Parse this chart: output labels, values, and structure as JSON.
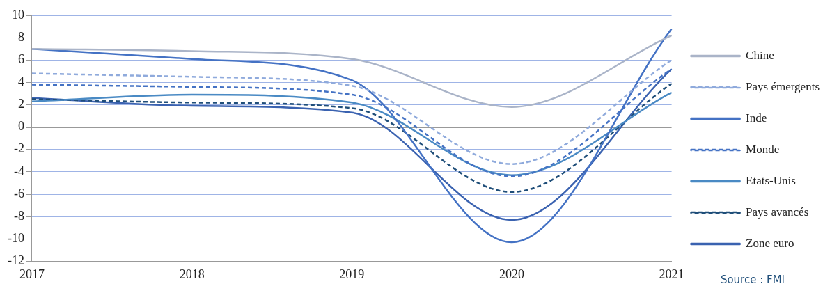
{
  "chart_data": {
    "type": "line",
    "categories": [
      "2017",
      "2018",
      "2019",
      "2020",
      "2021"
    ],
    "series": [
      {
        "name": "Chine",
        "color": "#aab4c8",
        "line_style": "solid",
        "values": [
          7.0,
          6.8,
          6.1,
          1.8,
          8.2
        ]
      },
      {
        "name": "Pays émergents",
        "color": "#8faadc",
        "line_style": "dashed",
        "values": [
          4.8,
          4.5,
          3.7,
          -3.3,
          6.0
        ]
      },
      {
        "name": "Inde",
        "color": "#4472c4",
        "line_style": "solid",
        "values": [
          7.0,
          6.1,
          4.2,
          -10.3,
          8.8
        ]
      },
      {
        "name": "Monde",
        "color": "#4472c4",
        "line_style": "dashed",
        "values": [
          3.8,
          3.6,
          2.9,
          -4.4,
          5.2
        ]
      },
      {
        "name": "Etats-Unis",
        "color": "#4a8ac4",
        "line_style": "solid",
        "values": [
          2.3,
          2.9,
          2.2,
          -4.3,
          3.1
        ]
      },
      {
        "name": "Pays avancés",
        "color": "#1f4e79",
        "line_style": "dashed",
        "values": [
          2.5,
          2.2,
          1.7,
          -5.8,
          3.9
        ]
      },
      {
        "name": "Zone euro",
        "color": "#3a62b0",
        "line_style": "solid",
        "values": [
          2.6,
          1.9,
          1.3,
          -8.3,
          5.2
        ]
      }
    ],
    "ylim": [
      -12,
      10
    ],
    "yticks": [
      -12,
      -10,
      -8,
      -6,
      -4,
      -2,
      0,
      2,
      4,
      6,
      8,
      10
    ],
    "grid": "y",
    "legend": "right",
    "marker": "none",
    "annotations": [
      "Source : FMI"
    ]
  }
}
